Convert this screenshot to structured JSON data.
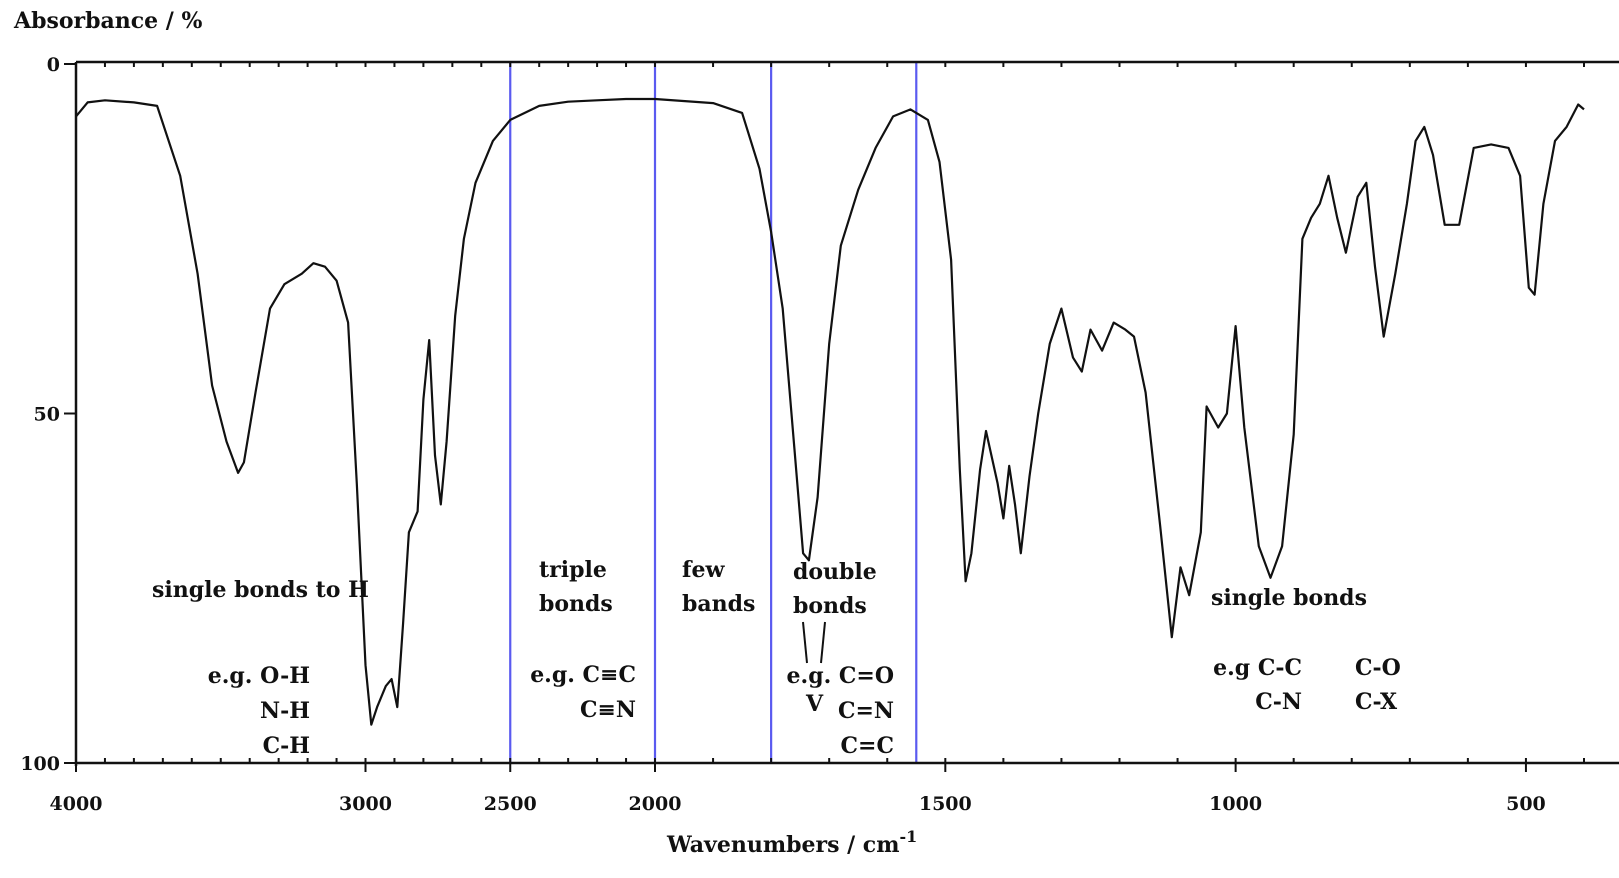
{
  "chart_data": {
    "type": "line",
    "ylabel": "Absorbance / %",
    "xlabel": "Wavenumbers / cm",
    "xlabel_superscript": "-1",
    "xlim": [
      4000,
      400
    ],
    "ylim": [
      0,
      100
    ],
    "y_inverted": true,
    "x_ticks": [
      4000,
      3000,
      2500,
      2000,
      1500,
      1000,
      500
    ],
    "x_tick_labels": [
      "4000",
      "3000",
      "2500",
      "2000",
      "1500",
      "1000",
      "500"
    ],
    "y_ticks": [
      0,
      50,
      100
    ],
    "y_tick_labels": [
      "0",
      "50",
      "100"
    ],
    "region_boundaries": [
      2500,
      2000,
      1800,
      1550
    ],
    "line_color": "#111111",
    "region_line_color": "#5a5af0",
    "annotations": [
      {
        "id": "single-h-title",
        "lines": [
          "single bonds to H"
        ]
      },
      {
        "id": "single-h-examples",
        "lines": [
          "e.g. O-H",
          "N-H",
          "C-H"
        ]
      },
      {
        "id": "triple-title",
        "lines": [
          "triple",
          "bonds"
        ]
      },
      {
        "id": "triple-examples",
        "lines": [
          "e.g. C≡C",
          "C≡N"
        ]
      },
      {
        "id": "few-title",
        "lines": [
          "few",
          "bands"
        ]
      },
      {
        "id": "double-title",
        "lines": [
          "double",
          "bonds"
        ]
      },
      {
        "id": "double-examples",
        "lines": [
          "e.g. C=O",
          "C=N",
          "C=C"
        ]
      },
      {
        "id": "single-title",
        "lines": [
          "single bonds"
        ]
      },
      {
        "id": "single-examples-1",
        "lines": [
          "e.g C-C",
          "C-N"
        ]
      },
      {
        "id": "single-examples-2",
        "lines": [
          "C-O",
          "C-X"
        ]
      }
    ],
    "series": [
      {
        "points": [
          [
            4000,
            7.5
          ],
          [
            3960,
            5.5
          ],
          [
            3900,
            5.2
          ],
          [
            3800,
            5.5
          ],
          [
            3720,
            6
          ],
          [
            3640,
            16
          ],
          [
            3580,
            30
          ],
          [
            3530,
            46
          ],
          [
            3480,
            54
          ],
          [
            3440,
            58.5
          ],
          [
            3420,
            57
          ],
          [
            3380,
            47
          ],
          [
            3330,
            35
          ],
          [
            3280,
            31.5
          ],
          [
            3220,
            30
          ],
          [
            3180,
            28.5
          ],
          [
            3140,
            29
          ],
          [
            3100,
            31
          ],
          [
            3060,
            37
          ],
          [
            3030,
            60
          ],
          [
            3000,
            86
          ],
          [
            2980,
            94.5
          ],
          [
            2960,
            92
          ],
          [
            2930,
            89
          ],
          [
            2910,
            88
          ],
          [
            2890,
            92
          ],
          [
            2870,
            80
          ],
          [
            2850,
            67
          ],
          [
            2820,
            64
          ],
          [
            2800,
            48
          ],
          [
            2780,
            39.5
          ],
          [
            2760,
            56
          ],
          [
            2740,
            63
          ],
          [
            2720,
            54
          ],
          [
            2690,
            36
          ],
          [
            2660,
            25
          ],
          [
            2620,
            17
          ],
          [
            2560,
            11
          ],
          [
            2500,
            8
          ],
          [
            2400,
            6
          ],
          [
            2300,
            5.4
          ],
          [
            2200,
            5.2
          ],
          [
            2100,
            5
          ],
          [
            2000,
            5
          ],
          [
            1900,
            5.6
          ],
          [
            1850,
            7
          ],
          [
            1820,
            15
          ],
          [
            1800,
            24
          ],
          [
            1780,
            35
          ],
          [
            1760,
            55
          ],
          [
            1745,
            70
          ],
          [
            1735,
            71
          ],
          [
            1720,
            62
          ],
          [
            1700,
            40
          ],
          [
            1680,
            26
          ],
          [
            1650,
            18
          ],
          [
            1620,
            12
          ],
          [
            1590,
            7.5
          ],
          [
            1560,
            6.5
          ],
          [
            1530,
            8
          ],
          [
            1510,
            14
          ],
          [
            1490,
            28
          ],
          [
            1475,
            58
          ],
          [
            1465,
            74
          ],
          [
            1455,
            70
          ],
          [
            1440,
            58
          ],
          [
            1430,
            52.5
          ],
          [
            1410,
            60
          ],
          [
            1400,
            65
          ],
          [
            1390,
            57.5
          ],
          [
            1380,
            63
          ],
          [
            1370,
            70
          ],
          [
            1355,
            59
          ],
          [
            1340,
            50
          ],
          [
            1320,
            40
          ],
          [
            1300,
            35
          ],
          [
            1280,
            42
          ],
          [
            1265,
            44
          ],
          [
            1250,
            38
          ],
          [
            1230,
            41
          ],
          [
            1210,
            37
          ],
          [
            1190,
            38
          ],
          [
            1175,
            39
          ],
          [
            1155,
            47
          ],
          [
            1130,
            66
          ],
          [
            1110,
            82
          ],
          [
            1095,
            72
          ],
          [
            1080,
            76
          ],
          [
            1060,
            67
          ],
          [
            1050,
            49
          ],
          [
            1030,
            52
          ],
          [
            1015,
            50
          ],
          [
            1000,
            37.5
          ],
          [
            985,
            52
          ],
          [
            960,
            69
          ],
          [
            940,
            73.5
          ],
          [
            920,
            69
          ],
          [
            900,
            53
          ],
          [
            885,
            25
          ],
          [
            870,
            22
          ],
          [
            855,
            20
          ],
          [
            840,
            16
          ],
          [
            825,
            22
          ],
          [
            810,
            27
          ],
          [
            790,
            19
          ],
          [
            775,
            17
          ],
          [
            760,
            29
          ],
          [
            745,
            39
          ],
          [
            725,
            30
          ],
          [
            705,
            20
          ],
          [
            690,
            11
          ],
          [
            675,
            9
          ],
          [
            660,
            13
          ],
          [
            640,
            23
          ],
          [
            615,
            23
          ],
          [
            590,
            12
          ],
          [
            560,
            11.5
          ],
          [
            530,
            12
          ],
          [
            510,
            16
          ],
          [
            495,
            32
          ],
          [
            485,
            33
          ],
          [
            470,
            20
          ],
          [
            450,
            11
          ],
          [
            430,
            9
          ],
          [
            410,
            5.8
          ],
          [
            400,
            6.5
          ]
        ]
      }
    ]
  }
}
